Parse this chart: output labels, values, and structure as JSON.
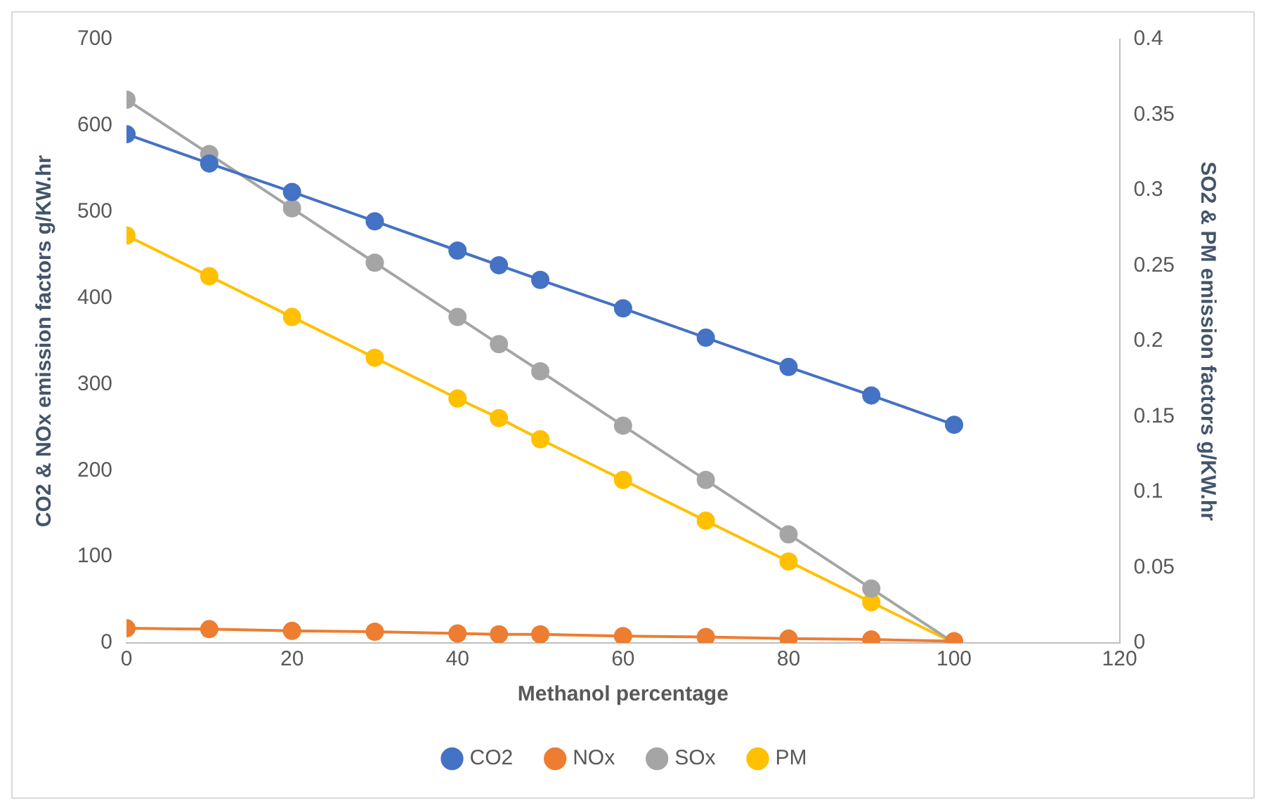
{
  "chart_data": {
    "type": "line",
    "xlabel": "Methanol percentage",
    "ylabel": "CO2 & NOx emission factors g/KW.hr",
    "y2label": "SO2 & PM emission factors g/KW.hr",
    "x": [
      0,
      10,
      20,
      30,
      40,
      45,
      50,
      60,
      70,
      80,
      90,
      100
    ],
    "xlim": [
      0,
      120
    ],
    "xticks": [
      0,
      20,
      40,
      60,
      80,
      100,
      120
    ],
    "ylim": [
      0,
      700
    ],
    "yticks": [
      0,
      100,
      200,
      300,
      400,
      500,
      600,
      700
    ],
    "y2lim": [
      0,
      0.4
    ],
    "y2ticks": [
      0,
      0.05,
      0.1,
      0.15,
      0.2,
      0.25,
      0.3,
      0.35,
      0.4
    ],
    "series": [
      {
        "name": "CO2",
        "color": "#4472c4",
        "values": [
          590,
          556,
          523,
          489,
          455,
          438,
          421,
          388,
          354,
          320,
          287,
          253
        ]
      },
      {
        "name": "NOx",
        "color": "#ed7d31",
        "values": [
          17,
          16,
          14,
          13,
          11,
          10,
          10,
          8,
          7,
          5,
          4,
          2
        ]
      },
      {
        "name": "SOx",
        "color": "#a5a5a5",
        "axis": "y2",
        "values": [
          0.36,
          0.324,
          0.288,
          0.252,
          0.216,
          0.198,
          0.18,
          0.144,
          0.108,
          0.072,
          0.036,
          0
        ]
      },
      {
        "name": "PM",
        "color": "#ffc000",
        "axis": "y2",
        "values": [
          0.27,
          0.243,
          0.216,
          0.189,
          0.162,
          0.149,
          0.135,
          0.108,
          0.081,
          0.054,
          0.027,
          0
        ]
      }
    ],
    "grid": false,
    "legend": "bottom",
    "marker": "circle",
    "line_style": "solid"
  }
}
